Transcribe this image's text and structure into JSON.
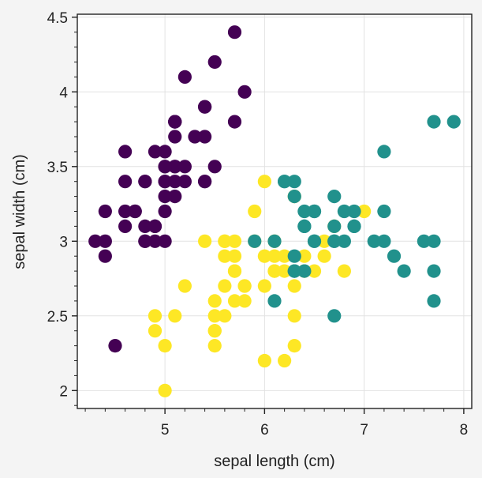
{
  "chart_data": {
    "type": "scatter",
    "title": "",
    "xlabel": "sepal length (cm)",
    "ylabel": "sepal width (cm)",
    "xlim": [
      4.12,
      8.08
    ],
    "ylim": [
      1.88,
      4.52
    ],
    "xticks": [
      5,
      6,
      7,
      8
    ],
    "xtick_labels": [
      "5",
      "6",
      "7",
      "8"
    ],
    "yticks": [
      2,
      2.5,
      3,
      3.5,
      4,
      4.5
    ],
    "ytick_labels": [
      "2",
      "2.5",
      "3",
      "3.5",
      "4",
      "4.5"
    ],
    "grid": true,
    "legend": "none",
    "series": [
      {
        "color": "#440154",
        "points": [
          [
            5.1,
            3.5
          ],
          [
            4.9,
            3.0
          ],
          [
            4.7,
            3.2
          ],
          [
            4.6,
            3.1
          ],
          [
            5.0,
            3.6
          ],
          [
            5.4,
            3.9
          ],
          [
            4.6,
            3.4
          ],
          [
            5.0,
            3.4
          ],
          [
            4.4,
            2.9
          ],
          [
            4.9,
            3.1
          ],
          [
            5.4,
            3.7
          ],
          [
            4.8,
            3.4
          ],
          [
            4.8,
            3.0
          ],
          [
            4.3,
            3.0
          ],
          [
            5.8,
            4.0
          ],
          [
            5.7,
            4.4
          ],
          [
            5.4,
            3.9
          ],
          [
            5.1,
            3.5
          ],
          [
            5.7,
            3.8
          ],
          [
            5.1,
            3.8
          ],
          [
            5.4,
            3.4
          ],
          [
            5.1,
            3.7
          ],
          [
            4.6,
            3.6
          ],
          [
            5.1,
            3.3
          ],
          [
            4.8,
            3.4
          ],
          [
            5.0,
            3.0
          ],
          [
            5.0,
            3.4
          ],
          [
            5.2,
            3.5
          ],
          [
            5.2,
            3.4
          ],
          [
            4.7,
            3.2
          ],
          [
            4.8,
            3.1
          ],
          [
            5.4,
            3.4
          ],
          [
            5.2,
            4.1
          ],
          [
            5.5,
            4.2
          ],
          [
            4.9,
            3.1
          ],
          [
            5.0,
            3.2
          ],
          [
            5.5,
            3.5
          ],
          [
            4.9,
            3.6
          ],
          [
            4.4,
            3.0
          ],
          [
            5.1,
            3.4
          ],
          [
            5.0,
            3.5
          ],
          [
            4.5,
            2.3
          ],
          [
            4.4,
            3.2
          ],
          [
            5.0,
            3.5
          ],
          [
            5.1,
            3.8
          ],
          [
            4.8,
            3.0
          ],
          [
            5.1,
            3.8
          ],
          [
            4.6,
            3.2
          ],
          [
            5.3,
            3.7
          ],
          [
            5.0,
            3.3
          ]
        ]
      },
      {
        "color": "#fde725",
        "points": [
          [
            7.0,
            3.2
          ],
          [
            5.5,
            2.3
          ],
          [
            6.5,
            2.8
          ],
          [
            5.7,
            2.8
          ],
          [
            6.3,
            3.3
          ],
          [
            4.9,
            2.4
          ],
          [
            6.6,
            2.9
          ],
          [
            5.2,
            2.7
          ],
          [
            5.0,
            2.0
          ],
          [
            5.9,
            3.0
          ],
          [
            6.0,
            2.2
          ],
          [
            6.1,
            2.9
          ],
          [
            5.6,
            2.9
          ],
          [
            6.7,
            3.1
          ],
          [
            5.6,
            3.0
          ],
          [
            5.8,
            2.7
          ],
          [
            6.2,
            2.2
          ],
          [
            5.6,
            2.5
          ],
          [
            5.9,
            3.2
          ],
          [
            6.1,
            2.8
          ],
          [
            6.3,
            2.5
          ],
          [
            6.1,
            2.8
          ],
          [
            6.4,
            2.9
          ],
          [
            6.6,
            3.0
          ],
          [
            6.8,
            2.8
          ],
          [
            6.0,
            2.9
          ],
          [
            5.7,
            2.6
          ],
          [
            5.5,
            2.4
          ],
          [
            5.5,
            2.4
          ],
          [
            5.8,
            2.7
          ],
          [
            6.0,
            2.7
          ],
          [
            5.4,
            3.0
          ],
          [
            6.0,
            3.4
          ],
          [
            6.3,
            2.3
          ],
          [
            5.6,
            3.0
          ],
          [
            5.5,
            2.5
          ],
          [
            5.5,
            2.6
          ],
          [
            6.1,
            3.0
          ],
          [
            5.8,
            2.6
          ],
          [
            5.0,
            2.3
          ],
          [
            5.6,
            2.7
          ],
          [
            5.7,
            3.0
          ],
          [
            5.7,
            2.9
          ],
          [
            6.2,
            2.9
          ],
          [
            5.1,
            2.5
          ],
          [
            5.7,
            2.8
          ],
          [
            4.9,
            2.5
          ],
          [
            6.2,
            2.8
          ],
          [
            6.4,
            2.8
          ],
          [
            6.3,
            2.7
          ]
        ]
      },
      {
        "color": "#21918c",
        "points": [
          [
            6.3,
            3.3
          ],
          [
            6.5,
            3.0
          ],
          [
            7.1,
            3.0
          ],
          [
            6.3,
            2.9
          ],
          [
            7.6,
            3.0
          ],
          [
            7.3,
            2.9
          ],
          [
            6.7,
            2.5
          ],
          [
            7.2,
            3.6
          ],
          [
            6.5,
            3.2
          ],
          [
            6.4,
            3.2
          ],
          [
            6.8,
            3.0
          ],
          [
            6.4,
            3.1
          ],
          [
            7.7,
            3.8
          ],
          [
            7.7,
            2.6
          ],
          [
            6.9,
            3.2
          ],
          [
            7.7,
            2.8
          ],
          [
            6.7,
            3.3
          ],
          [
            7.2,
            3.2
          ],
          [
            6.2,
            3.4
          ],
          [
            6.1,
            2.6
          ],
          [
            7.2,
            3.0
          ],
          [
            7.4,
            2.8
          ],
          [
            7.9,
            3.8
          ],
          [
            6.3,
            2.8
          ],
          [
            6.1,
            3.0
          ],
          [
            7.7,
            3.0
          ],
          [
            6.3,
            3.4
          ],
          [
            6.4,
            3.1
          ],
          [
            6.9,
            3.1
          ],
          [
            6.7,
            3.1
          ],
          [
            6.8,
            3.2
          ],
          [
            6.7,
            3.0
          ],
          [
            6.5,
            3.0
          ],
          [
            6.2,
            3.4
          ],
          [
            5.9,
            3.0
          ],
          [
            6.3,
            2.8
          ],
          [
            6.9,
            3.1
          ],
          [
            6.4,
            2.8
          ],
          [
            6.5,
            3.2
          ],
          [
            6.7,
            3.0
          ]
        ]
      }
    ]
  }
}
